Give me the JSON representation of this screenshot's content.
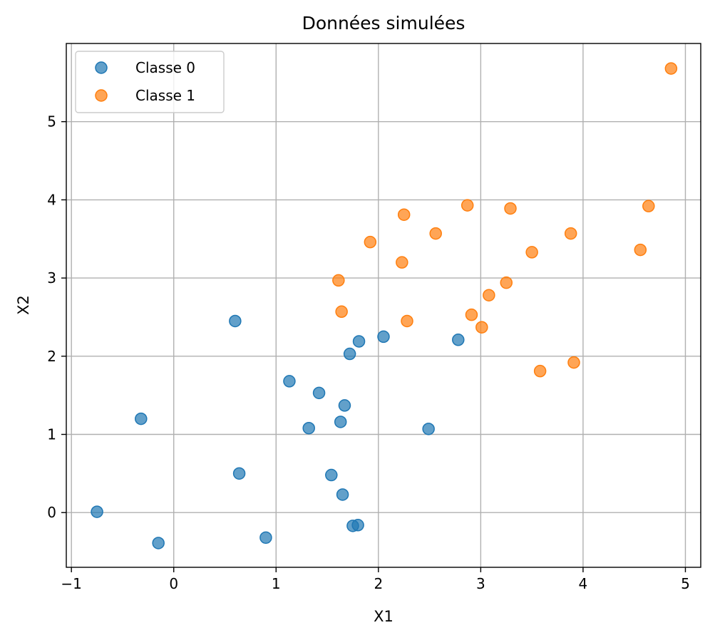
{
  "chart_data": {
    "type": "scatter",
    "title": "Données simulées",
    "xlabel": "X1",
    "ylabel": "X2",
    "xlim": [
      -1.05,
      5.15
    ],
    "ylim": [
      -0.7,
      6.0
    ],
    "xticks": [
      -1,
      0,
      1,
      2,
      3,
      4,
      5
    ],
    "yticks": [
      0,
      1,
      2,
      3,
      4,
      5
    ],
    "xtick_labels": [
      "−1",
      "0",
      "1",
      "2",
      "3",
      "4",
      "5"
    ],
    "ytick_labels": [
      "0",
      "1",
      "2",
      "3",
      "4",
      "5"
    ],
    "grid": true,
    "legend_position": "top-left",
    "series": [
      {
        "name": "Classe 0",
        "color": "#1f77b4",
        "points": [
          [
            -0.75,
            0.01
          ],
          [
            -0.32,
            1.2
          ],
          [
            -0.15,
            -0.39
          ],
          [
            0.6,
            2.45
          ],
          [
            0.64,
            0.5
          ],
          [
            0.9,
            -0.32
          ],
          [
            1.13,
            1.68
          ],
          [
            1.32,
            1.08
          ],
          [
            1.42,
            1.53
          ],
          [
            1.54,
            0.48
          ],
          [
            1.63,
            1.16
          ],
          [
            1.65,
            0.23
          ],
          [
            1.67,
            1.37
          ],
          [
            1.72,
            2.03
          ],
          [
            1.75,
            -0.17
          ],
          [
            1.8,
            -0.16
          ],
          [
            1.81,
            2.19
          ],
          [
            2.05,
            2.25
          ],
          [
            2.49,
            1.07
          ],
          [
            2.78,
            2.21
          ]
        ]
      },
      {
        "name": "Classe 1",
        "color": "#ff7f0e",
        "points": [
          [
            1.61,
            2.97
          ],
          [
            1.64,
            2.57
          ],
          [
            1.92,
            3.46
          ],
          [
            2.23,
            3.2
          ],
          [
            2.25,
            3.81
          ],
          [
            2.28,
            2.45
          ],
          [
            2.56,
            3.57
          ],
          [
            2.87,
            3.93
          ],
          [
            2.91,
            2.53
          ],
          [
            3.01,
            2.37
          ],
          [
            3.08,
            2.78
          ],
          [
            3.25,
            2.94
          ],
          [
            3.29,
            3.89
          ],
          [
            3.5,
            3.33
          ],
          [
            3.58,
            1.81
          ],
          [
            3.88,
            3.57
          ],
          [
            3.91,
            1.92
          ],
          [
            4.56,
            3.36
          ],
          [
            4.64,
            3.92
          ],
          [
            4.86,
            5.68
          ]
        ]
      }
    ]
  }
}
